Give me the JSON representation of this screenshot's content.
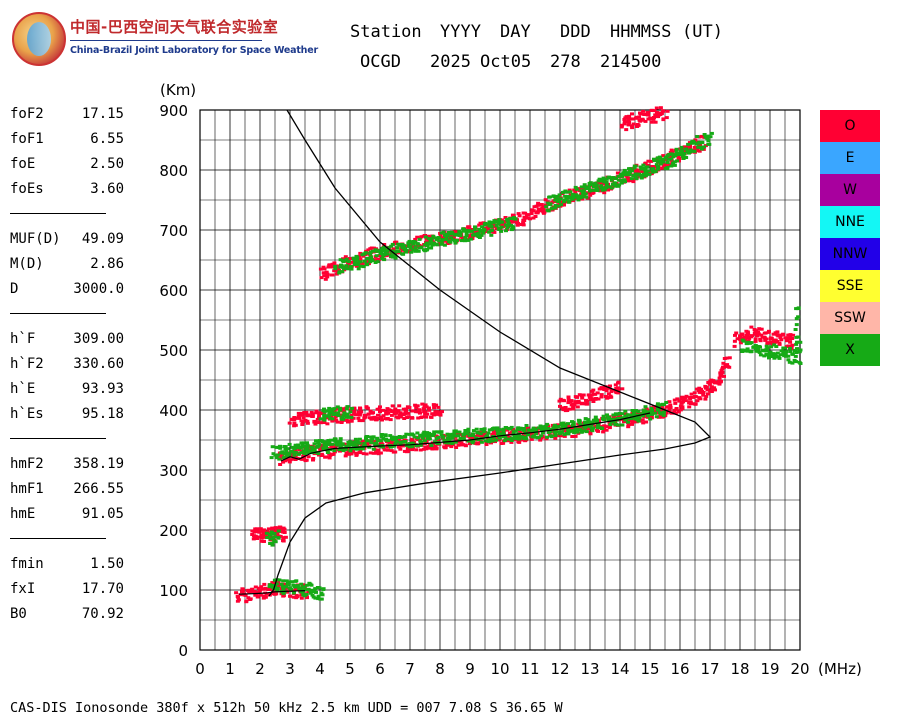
{
  "logo": {
    "cn_text": "中国-巴西空间天气联合实验室",
    "en_text": "China-Brazil Joint Laboratory for Space Weather"
  },
  "header": {
    "labels": [
      "Station",
      "YYYY",
      "DAY",
      "DDD",
      "HHMMSS",
      "(UT)"
    ],
    "values": [
      "OCGD",
      "2025",
      "Oct05",
      "278",
      "214500"
    ]
  },
  "params": [
    [
      {
        "k": "foF2",
        "v": "17.15"
      },
      {
        "k": "foF1",
        "v": "6.55"
      },
      {
        "k": "foE",
        "v": "2.50"
      },
      {
        "k": "foEs",
        "v": "3.60"
      }
    ],
    [
      {
        "k": "MUF(D)",
        "v": "49.09"
      },
      {
        "k": "M(D)",
        "v": "2.86"
      },
      {
        "k": "D",
        "v": "3000.0"
      }
    ],
    [
      {
        "k": "h`F",
        "v": "309.00"
      },
      {
        "k": "h`F2",
        "v": "330.60"
      },
      {
        "k": "h`E",
        "v": "93.93"
      },
      {
        "k": "h`Es",
        "v": "95.18"
      }
    ],
    [
      {
        "k": "hmF2",
        "v": "358.19"
      },
      {
        "k": "hmF1",
        "v": "266.55"
      },
      {
        "k": "hmE",
        "v": "91.05"
      }
    ],
    [
      {
        "k": "fmin",
        "v": "1.50"
      },
      {
        "k": "fxI",
        "v": "17.70"
      },
      {
        "k": "B0",
        "v": "70.92"
      }
    ]
  ],
  "legend": [
    {
      "name": "O",
      "color": "#ff0033"
    },
    {
      "name": "E",
      "color": "#3aa6ff"
    },
    {
      "name": "W",
      "color": "#a8009e"
    },
    {
      "name": "NNE",
      "color": "#13f7f5"
    },
    {
      "name": "NNW",
      "color": "#2200e8"
    },
    {
      "name": "SSE",
      "color": "#ffff30"
    },
    {
      "name": "SSW",
      "color": "#ffb6a8"
    },
    {
      "name": "X",
      "color": "#16aa16"
    }
  ],
  "footer": {
    "text": "CAS-DIS Ionosonde 380f x 512h 50 kHz 2.5 km UDD = 007 7.08 S 36.65 W"
  },
  "chart_data": {
    "type": "scatter",
    "xlabel": "(MHz)",
    "ylabel": "(Km)",
    "xlim": [
      0,
      20
    ],
    "ylim": [
      0,
      900
    ],
    "xticks": [
      0,
      1,
      2,
      3,
      4,
      5,
      6,
      7,
      8,
      9,
      10,
      11,
      12,
      13,
      14,
      15,
      16,
      17,
      18,
      19,
      20
    ],
    "yticks": [
      0,
      100,
      200,
      300,
      400,
      500,
      600,
      700,
      800,
      900
    ],
    "grid": true,
    "series": [
      {
        "color": "#ff0033",
        "traces": [
          [
            [
              1.2,
              92
            ],
            [
              1.6,
              96
            ],
            [
              2.0,
              100
            ],
            [
              2.4,
              104
            ],
            [
              2.8,
              102
            ],
            [
              3.2,
              101
            ],
            [
              3.6,
              99
            ]
          ],
          [
            [
              1.7,
              193
            ],
            [
              2.0,
              194
            ],
            [
              2.3,
              196
            ],
            [
              2.6,
              196
            ],
            [
              2.8,
              195
            ]
          ],
          [
            [
              2.6,
              322
            ],
            [
              3.0,
              325
            ],
            [
              4.0,
              333
            ],
            [
              5.0,
              338
            ],
            [
              6.0,
              341
            ],
            [
              7.0,
              345
            ],
            [
              8.0,
              349
            ],
            [
              9.0,
              353
            ],
            [
              10.0,
              357
            ],
            [
              11.0,
              362
            ],
            [
              12.0,
              367
            ],
            [
              13.0,
              374
            ],
            [
              14.0,
              384
            ],
            [
              15.0,
              396
            ],
            [
              15.5,
              404
            ],
            [
              16.0,
              413
            ],
            [
              16.5,
              424
            ],
            [
              17.0,
              440
            ],
            [
              17.3,
              460
            ],
            [
              17.6,
              485
            ]
          ],
          [
            [
              3.0,
              385
            ],
            [
              5.0,
              395
            ],
            [
              7.0,
              400
            ],
            [
              8.0,
              402
            ]
          ],
          [
            [
              4.0,
              630
            ],
            [
              5.0,
              650
            ],
            [
              6.0,
              665
            ],
            [
              7.0,
              678
            ],
            [
              8.0,
              688
            ],
            [
              9.0,
              700
            ],
            [
              10.0,
              712
            ],
            [
              11.0,
              725
            ]
          ],
          [
            [
              11.0,
              730
            ],
            [
              12.0,
              752
            ],
            [
              13.0,
              770
            ],
            [
              14.0,
              788
            ],
            [
              15.0,
              808
            ],
            [
              16.0,
              830
            ],
            [
              16.8,
              850
            ]
          ],
          [
            [
              14.0,
              880
            ],
            [
              15.0,
              892
            ],
            [
              15.5,
              898
            ]
          ],
          [
            [
              17.8,
              520
            ],
            [
              18.3,
              530
            ],
            [
              18.8,
              525
            ],
            [
              19.3,
              520
            ],
            [
              19.8,
              515
            ]
          ],
          [
            [
              12.0,
              410
            ],
            [
              13.0,
              425
            ],
            [
              14.0,
              440
            ]
          ]
        ]
      },
      {
        "color": "#16aa16",
        "traces": [
          [
            [
              2.3,
              110
            ],
            [
              2.9,
              108
            ],
            [
              3.5,
              104
            ],
            [
              4.1,
              96
            ]
          ],
          [
            [
              2.2,
              188
            ],
            [
              2.6,
              190
            ]
          ],
          [
            [
              2.4,
              330
            ],
            [
              4.0,
              342
            ],
            [
              6.0,
              350
            ],
            [
              8.0,
              356
            ],
            [
              10.0,
              362
            ],
            [
              12.0,
              370
            ],
            [
              14.0,
              388
            ],
            [
              15.5,
              405
            ]
          ],
          [
            [
              4.0,
              395
            ],
            [
              5.0,
              400
            ]
          ],
          [
            [
              4.5,
              640
            ],
            [
              6.5,
              668
            ],
            [
              8.5,
              692
            ],
            [
              10.5,
              715
            ]
          ],
          [
            [
              11.5,
              745
            ],
            [
              13.5,
              780
            ],
            [
              15.5,
              816
            ],
            [
              17.0,
              860
            ]
          ],
          [
            [
              18.0,
              510
            ],
            [
              19.0,
              500
            ],
            [
              19.9,
              490
            ],
            [
              19.8,
              580
            ]
          ]
        ]
      }
    ],
    "profile": [
      [
        2.3,
        90
      ],
      [
        2.45,
        100
      ],
      [
        2.6,
        125
      ],
      [
        3.0,
        180
      ],
      [
        3.5,
        220
      ],
      [
        4.2,
        245
      ],
      [
        5.5,
        262
      ],
      [
        7.5,
        278
      ],
      [
        10.0,
        295
      ],
      [
        12.0,
        310
      ],
      [
        14.0,
        325
      ],
      [
        15.5,
        335
      ],
      [
        16.5,
        345
      ],
      [
        17.0,
        355
      ],
      [
        16.5,
        380
      ],
      [
        15.5,
        400
      ],
      [
        14.0,
        430
      ],
      [
        12.0,
        470
      ],
      [
        10.0,
        530
      ],
      [
        8.0,
        600
      ],
      [
        6.0,
        680
      ],
      [
        4.5,
        770
      ],
      [
        3.5,
        850
      ],
      [
        2.9,
        900
      ]
    ],
    "e_trace": [
      [
        1.3,
        93
      ],
      [
        1.8,
        94
      ],
      [
        2.2,
        95
      ],
      [
        2.5,
        97
      ],
      [
        3.0,
        98
      ],
      [
        3.5,
        99
      ]
    ],
    "f_trace": [
      [
        2.7,
        315
      ],
      [
        3.0,
        322
      ],
      [
        3.3,
        318
      ],
      [
        3.7,
        328
      ],
      [
        4.5,
        336
      ],
      [
        6.0,
        340
      ],
      [
        7.0,
        342
      ],
      [
        8.0,
        346
      ],
      [
        9.0,
        350
      ],
      [
        10.0,
        357
      ],
      [
        11.0,
        362
      ],
      [
        12.0,
        368
      ],
      [
        13.0,
        376
      ],
      [
        14.0,
        384
      ],
      [
        15.0,
        395
      ]
    ]
  }
}
